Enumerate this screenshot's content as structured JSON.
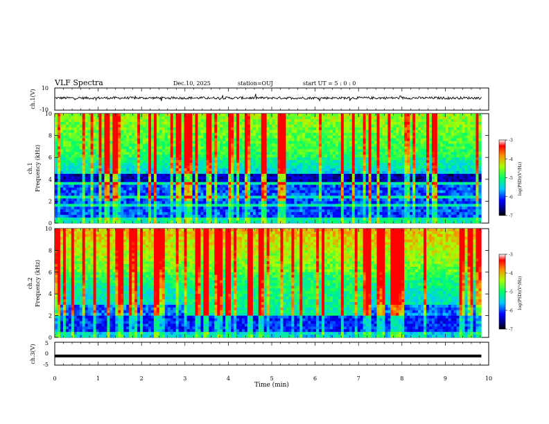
{
  "header": {
    "title": "VLF Spectra",
    "date": "Dec.10, 2025",
    "station": "station=OUJ",
    "start": "start  UT =   5 : 0  : 0"
  },
  "chart_data": [
    {
      "type": "line",
      "name": "ch1-waveform",
      "ylabel": "ch.1(V)",
      "ylim": [
        -10,
        10
      ],
      "ytick_labels": [
        "10",
        "-10"
      ],
      "description_level": 1.0
    },
    {
      "type": "heatmap",
      "name": "ch1-spectrogram",
      "ylabel": "ch.1\nFrequency (kHz)",
      "ylabel_lines": [
        "ch.1",
        "Frequency (kHz)"
      ],
      "ylim": [
        0,
        10
      ],
      "ytick_labels": [
        "0",
        "2",
        "4",
        "6",
        "8",
        "10"
      ],
      "colorbar": {
        "label": "log(PSD)(V²/Hz)",
        "range": [
          -7,
          -3
        ],
        "tick_labels": [
          "-3",
          "-4",
          "-5",
          "-6",
          "-7"
        ]
      }
    },
    {
      "type": "heatmap",
      "name": "ch2-spectrogram",
      "ylabel": "ch.2\nFrequency (kHz)",
      "ylabel_lines": [
        "ch.2",
        "Frequency (kHz)"
      ],
      "ylim": [
        0,
        10
      ],
      "ytick_labels": [
        "0",
        "2",
        "4",
        "6",
        "8",
        "10"
      ],
      "colorbar": {
        "label": "log(PSD)(V²/Hz)",
        "range": [
          -7,
          -3
        ],
        "tick_labels": [
          "-3",
          "-4",
          "-5",
          "-6",
          "-7"
        ]
      }
    },
    {
      "type": "line",
      "name": "ch3-waveform",
      "ylabel": "ch.3(V)",
      "ylim": [
        -5,
        5
      ],
      "ytick_labels": [
        "5",
        "0",
        "-5"
      ],
      "level": -1.0
    }
  ],
  "xaxis": {
    "label": "Time (min)",
    "range": [
      0,
      10
    ],
    "data_end": 9.83,
    "tick_labels": [
      "0",
      "1",
      "2",
      "3",
      "4",
      "5",
      "6",
      "7",
      "8",
      "9",
      "10"
    ]
  }
}
